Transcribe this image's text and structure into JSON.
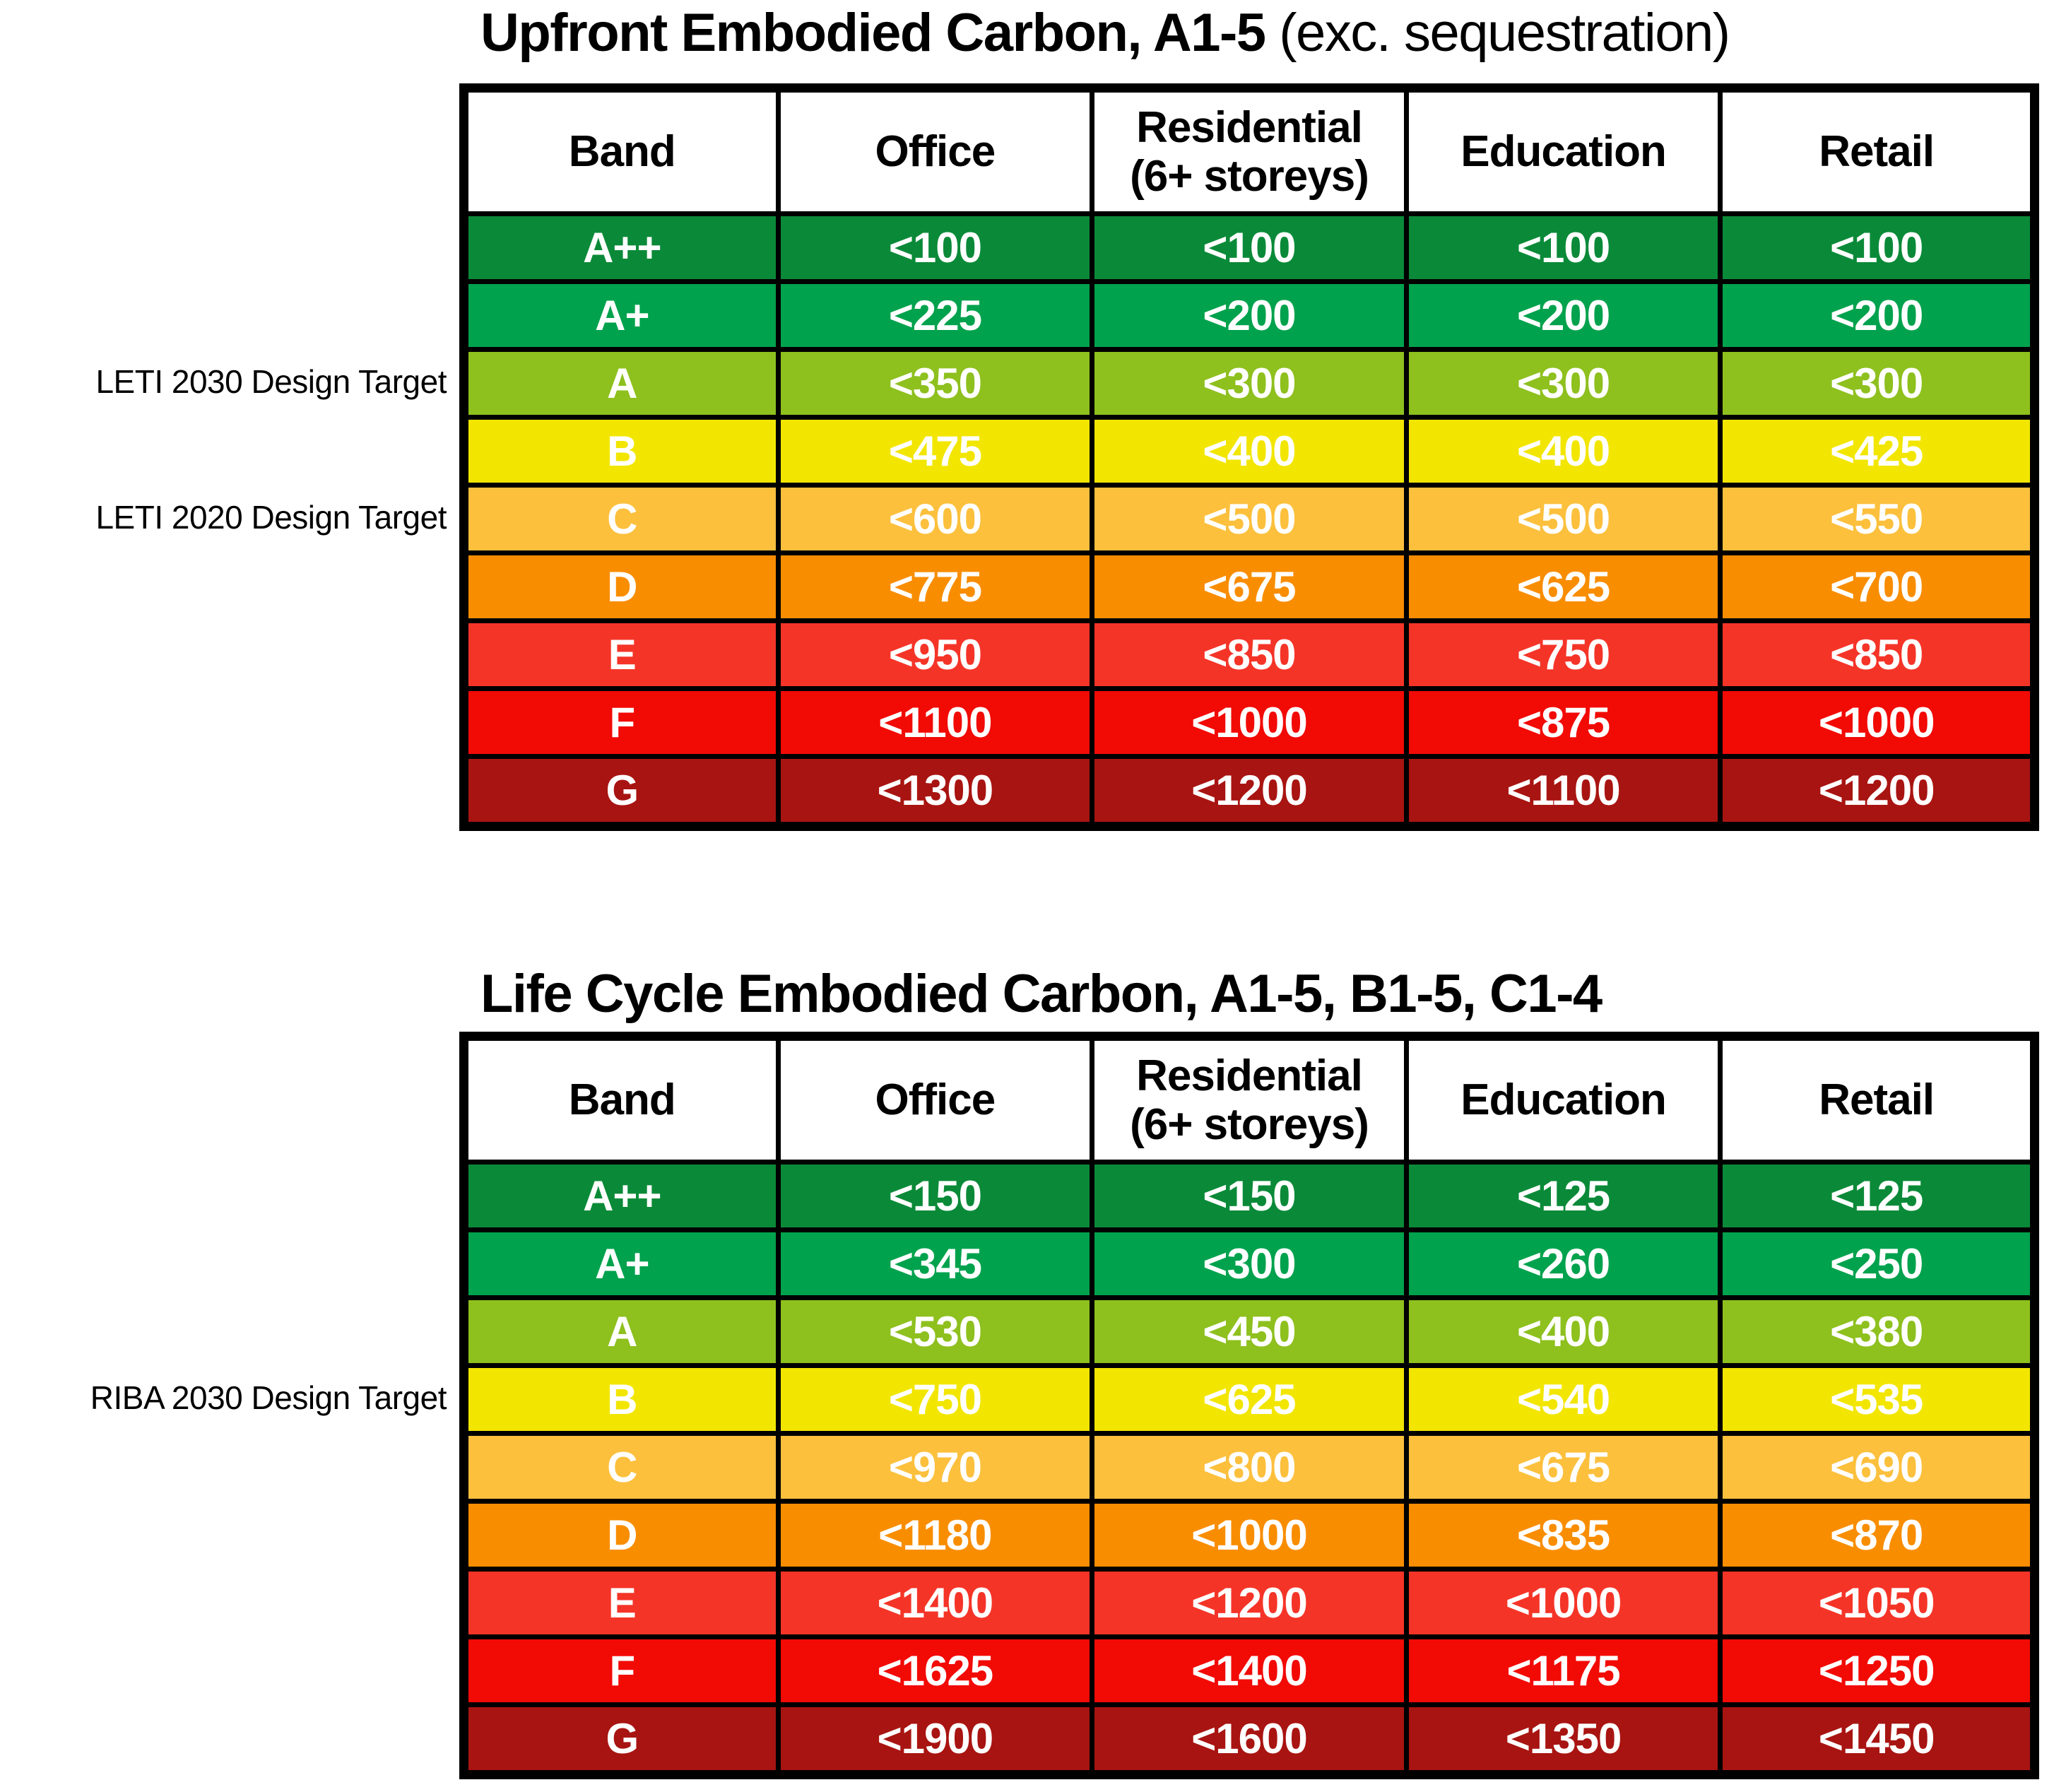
{
  "page": {
    "background": "#ffffff"
  },
  "band_palette": {
    "A++": "#0a8a38",
    "A+": "#00a24d",
    "A": "#8ec01e",
    "B": "#f2e600",
    "C": "#fcc03d",
    "D": "#f98d00",
    "E": "#f53428",
    "F": "#f20a05",
    "G": "#a81411"
  },
  "tables": [
    {
      "title": {
        "bold": "Upfront Embodied Carbon, A1-5",
        "regular": " (exc. sequestration)"
      },
      "columns": [
        {
          "lines": [
            "Band"
          ]
        },
        {
          "lines": [
            "Office"
          ]
        },
        {
          "lines": [
            "Residential",
            "(6+ storeys)"
          ]
        },
        {
          "lines": [
            "Education"
          ]
        },
        {
          "lines": [
            "Retail"
          ]
        }
      ],
      "rows": [
        {
          "band": "A++",
          "color": "#0a8a38",
          "values": [
            "<100",
            "<100",
            "<100",
            "<100"
          ]
        },
        {
          "band": "A+",
          "color": "#00a24d",
          "values": [
            "<225",
            "<200",
            "<200",
            "<200"
          ]
        },
        {
          "band": "A",
          "color": "#8ec01e",
          "values": [
            "<350",
            "<300",
            "<300",
            "<300"
          ]
        },
        {
          "band": "B",
          "color": "#f2e600",
          "values": [
            "<475",
            "<400",
            "<400",
            "<425"
          ]
        },
        {
          "band": "C",
          "color": "#fcc03d",
          "values": [
            "<600",
            "<500",
            "<500",
            "<550"
          ]
        },
        {
          "band": "D",
          "color": "#f98d00",
          "values": [
            "<775",
            "<675",
            "<625",
            "<700"
          ]
        },
        {
          "band": "E",
          "color": "#f53428",
          "values": [
            "<950",
            "<850",
            "<750",
            "<850"
          ]
        },
        {
          "band": "F",
          "color": "#f20a05",
          "values": [
            "<1100",
            "<1000",
            "<875",
            "<1000"
          ]
        },
        {
          "band": "G",
          "color": "#a81411",
          "values": [
            "<1300",
            "<1200",
            "<1100",
            "<1200"
          ]
        }
      ],
      "side_labels": [
        {
          "text": "LETI 2030 Design Target",
          "row_index": 2
        },
        {
          "text": "LETI 2020 Design Target",
          "row_index": 4
        }
      ]
    },
    {
      "title": {
        "bold": "Life Cycle Embodied Carbon, A1-5, B1-5, C1-4",
        "regular": ""
      },
      "columns": [
        {
          "lines": [
            "Band"
          ]
        },
        {
          "lines": [
            "Office"
          ]
        },
        {
          "lines": [
            "Residential",
            "(6+ storeys)"
          ]
        },
        {
          "lines": [
            "Education"
          ]
        },
        {
          "lines": [
            "Retail"
          ]
        }
      ],
      "rows": [
        {
          "band": "A++",
          "color": "#0a8a38",
          "values": [
            "<150",
            "<150",
            "<125",
            "<125"
          ]
        },
        {
          "band": "A+",
          "color": "#00a24d",
          "values": [
            "<345",
            "<300",
            "<260",
            "<250"
          ]
        },
        {
          "band": "A",
          "color": "#8ec01e",
          "values": [
            "<530",
            "<450",
            "<400",
            "<380"
          ]
        },
        {
          "band": "B",
          "color": "#f2e600",
          "values": [
            "<750",
            "<625",
            "<540",
            "<535"
          ]
        },
        {
          "band": "C",
          "color": "#fcc03d",
          "values": [
            "<970",
            "<800",
            "<675",
            "<690"
          ]
        },
        {
          "band": "D",
          "color": "#f98d00",
          "values": [
            "<1180",
            "<1000",
            "<835",
            "<870"
          ]
        },
        {
          "band": "E",
          "color": "#f53428",
          "values": [
            "<1400",
            "<1200",
            "<1000",
            "<1050"
          ]
        },
        {
          "band": "F",
          "color": "#f20a05",
          "values": [
            "<1625",
            "<1400",
            "<1175",
            "<1250"
          ]
        },
        {
          "band": "G",
          "color": "#a81411",
          "values": [
            "<1900",
            "<1600",
            "<1350",
            "<1450"
          ]
        }
      ],
      "side_labels": [
        {
          "text": "RIBA 2030 Design Target",
          "row_index": 3
        }
      ]
    }
  ]
}
